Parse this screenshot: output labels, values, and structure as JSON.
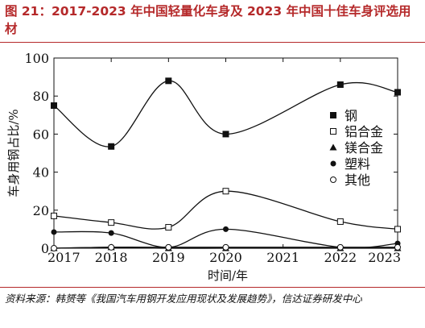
{
  "header": {
    "title": "图 21：2017-2023 年中国轻量化车身及 2023 年中国十佳车身评选用材"
  },
  "footer": {
    "source": "资料来源：韩赟等《我国汽车用钢开发应用现状及发展趋势》，信达证券研发中心"
  },
  "chart_data": {
    "type": "line",
    "xlabel": "时间/年",
    "ylabel": "车身用钢占比/%",
    "categories": [
      "2017",
      "2018",
      "2019",
      "2020",
      "2021",
      "2022",
      "2023"
    ],
    "ylim": [
      0,
      100
    ],
    "yticks": [
      0,
      20,
      40,
      60,
      80,
      100
    ],
    "grid": false,
    "legend_position": "right",
    "series": [
      {
        "name": "钢",
        "marker": "square-filled",
        "x": [
          2017,
          2018,
          2019,
          2020,
          2022,
          2023
        ],
        "values": [
          75,
          53.5,
          88,
          60,
          86,
          82
        ]
      },
      {
        "name": "铝合金",
        "marker": "square-open",
        "x": [
          2017,
          2018,
          2019,
          2020,
          2022,
          2023
        ],
        "values": [
          17,
          13.5,
          11,
          30,
          14,
          10
        ]
      },
      {
        "name": "镁合金",
        "marker": "triangle-filled",
        "x": [
          2017,
          2018,
          2019,
          2020,
          2022,
          2023
        ],
        "values": [
          0,
          0.5,
          0,
          0,
          0,
          0
        ]
      },
      {
        "name": "塑料",
        "marker": "circle-filled",
        "x": [
          2017,
          2018,
          2019,
          2020,
          2022,
          2023
        ],
        "values": [
          8.5,
          8,
          0.5,
          10,
          0.5,
          2.5
        ]
      },
      {
        "name": "其他",
        "marker": "circle-open",
        "x": [
          2017,
          2018,
          2019,
          2020,
          2022,
          2023
        ],
        "values": [
          0,
          0.5,
          0.5,
          0.5,
          0.5,
          0.5
        ]
      }
    ]
  }
}
